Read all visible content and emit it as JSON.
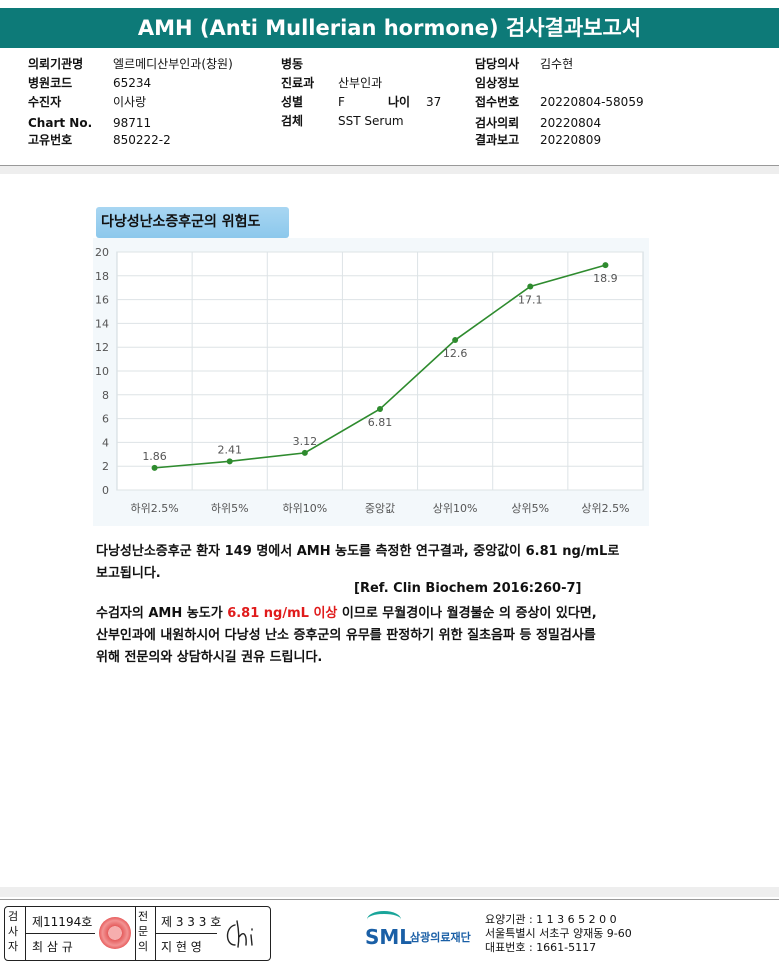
{
  "header": {
    "title": "AMH (Anti Mullerian hormone) 검사결과보고서"
  },
  "patient_info": {
    "col1": [
      {
        "label": "의뢰기관명",
        "value": "엘르메디산부인과(창원)"
      },
      {
        "label": "병원코드",
        "value": "65234"
      },
      {
        "label": "수진자",
        "value": "이사랑"
      },
      {
        "label": "Chart No.",
        "value": "98711"
      },
      {
        "label": "고유번호",
        "value": "850222-2"
      }
    ],
    "col2": [
      {
        "label": "병동",
        "value": ""
      },
      {
        "label": "진료과",
        "value": "산부인과"
      },
      {
        "label": "성별",
        "value": "F"
      },
      {
        "label": "검체",
        "value": "SST Serum"
      }
    ],
    "age": {
      "label": "나이",
      "value": "37"
    },
    "col3": [
      {
        "label": "담당의사",
        "value": "김수현"
      },
      {
        "label": "임상정보",
        "value": ""
      },
      {
        "label": "접수번호",
        "value": "20220804-58059"
      },
      {
        "label": "검사의뢰",
        "value": "20220804"
      },
      {
        "label": "결과보고",
        "value": "20220809"
      }
    ]
  },
  "chart_title": "다낭성난소증후군의 위험도",
  "chart_data": {
    "type": "line",
    "categories": [
      "하위2.5%",
      "하위5%",
      "하위10%",
      "중앙값",
      "상위10%",
      "상위5%",
      "상위2.5%"
    ],
    "values": [
      1.86,
      2.41,
      3.12,
      6.81,
      12.6,
      17.1,
      18.9
    ],
    "data_labels": [
      "1.86",
      "2.41",
      "3.12",
      "6.81",
      "12.6",
      "17.1",
      "18.9"
    ],
    "ylim": [
      0,
      20
    ],
    "yticks": [
      0,
      2,
      4,
      6,
      8,
      10,
      12,
      14,
      16,
      18,
      20
    ],
    "grid": true,
    "color": "#2e8b2e"
  },
  "description": {
    "line1": "다낭성난소증후군 환자 149 명에서 AMH 농도를 측정한 연구결과, 중앙값이 6.81 ng/mL로",
    "line2": "보고됩니다.",
    "ref": "[Ref. Clin Biochem 2016:260-7]",
    "line3_pre": "수검자의 AMH 농도가 ",
    "line3_highlight": "6.81 ng/mL 이상",
    "line3_post": " 이므로 무월경이나 월경불순 의 증상이 있다면,",
    "line4": "산부인과에 내원하시어 다낭성 난소 증후군의 유무를 판정하기 위한 질초음파 등 정밀검사를",
    "line5": "위해 전문의와 상담하시길 권유 드립니다."
  },
  "footer": {
    "inspector_label": "검사자",
    "inspector_no": "제11194호",
    "inspector_name": "최 삼 규",
    "specialist_label": "전문의",
    "specialist_no": "제 3 3 3 호",
    "specialist_name": "지 현 영",
    "org_logo": "SML",
    "org_name": "삼광의료재단",
    "care_code": "요양기관 : 1 1 3 6 5 2 0 0",
    "address": "서울특별시 서초구 양재동 9-60",
    "phone": "대표번호 : 1661-5117"
  }
}
